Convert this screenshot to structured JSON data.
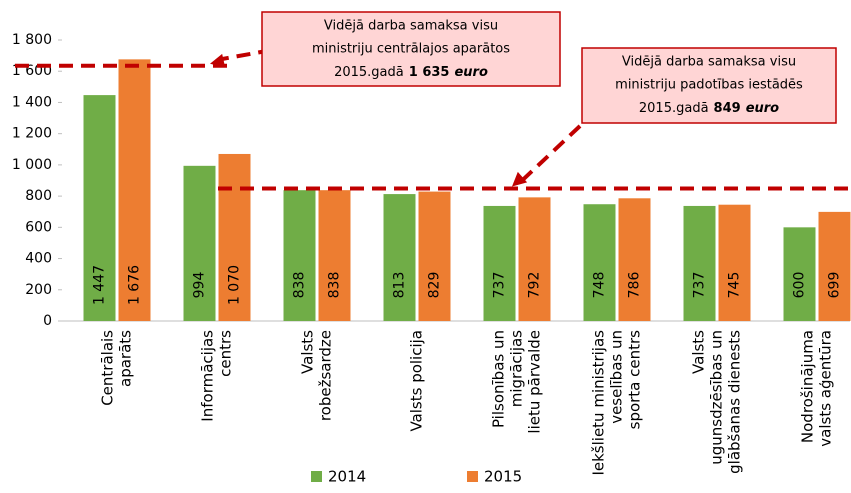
{
  "chart_data": {
    "type": "bar",
    "categories": [
      [
        "Centrālais",
        "aparāts"
      ],
      [
        "Informācijas",
        "centrs"
      ],
      [
        "Valsts",
        "robežsardze"
      ],
      [
        "Valsts policija"
      ],
      [
        "Pilsonības un",
        "migrācijas",
        "lietu pārvalde"
      ],
      [
        "Iekšlietu ministrijas",
        "veselības un",
        "sporta centrs"
      ],
      [
        "Valsts",
        "ugunsdzēsības un",
        "glābšanas dienests"
      ],
      [
        "Nodrošinājuma",
        "valsts aģentūra"
      ]
    ],
    "series": [
      {
        "name": "2014",
        "color": "#70ad47",
        "values": [
          1447,
          994,
          838,
          813,
          737,
          748,
          737,
          600
        ],
        "value_labels": [
          "1 447",
          "994",
          "838",
          "813",
          "737",
          "748",
          "737",
          "600"
        ]
      },
      {
        "name": "2015",
        "color": "#ed7d31",
        "values": [
          1676,
          1070,
          838,
          829,
          792,
          786,
          745,
          699
        ],
        "value_labels": [
          "1 676",
          "1 070",
          "838",
          "829",
          "792",
          "786",
          "745",
          "699"
        ]
      }
    ],
    "ylim": [
      0,
      1800
    ],
    "yticks": [
      0,
      200,
      400,
      600,
      800,
      {
        "value": 1000,
        "label": "1 000"
      },
      {
        "value": 1200,
        "label": "1 200"
      },
      {
        "value": 1400,
        "label": "1 400"
      },
      {
        "value": 1600,
        "label": "1 600"
      },
      {
        "value": 1800,
        "label": "1 800"
      }
    ],
    "annotations": [
      {
        "value": 1635,
        "lines": [
          "Vidējā darba samaksa visu",
          "ministriju centrālajos aparātos"
        ],
        "prefix": "2015.gadā",
        "value_label": "1 635",
        "unit": "euro",
        "color": "#c00000"
      },
      {
        "value": 849,
        "lines": [
          "Vidējā darba samaksa visu",
          "ministriju padotības iestādēs"
        ],
        "prefix": "2015.gadā",
        "value_label": "849",
        "unit": "euro",
        "color": "#c00000"
      }
    ]
  }
}
